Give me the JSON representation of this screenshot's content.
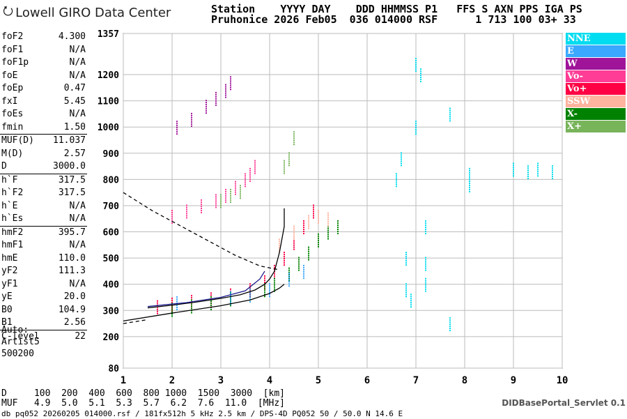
{
  "header": {
    "logo": "Lowell GIRO Data Center",
    "line1": "Station    YYYY DAY    DDD HHMMSS P1   FFS S AXN PPS IGA PS",
    "line2": "Pruhonice 2026 Feb05  036 014000 RSF      1 713 100 03+ 33"
  },
  "params": [
    {
      "name": "foF2",
      "value": "4.300"
    },
    {
      "name": "foF1",
      "value": "N/A"
    },
    {
      "name": "foF1p",
      "value": "N/A"
    },
    {
      "name": "foE",
      "value": "N/A"
    },
    {
      "name": "foEp",
      "value": "0.47"
    },
    {
      "name": "fxI",
      "value": "5.45"
    },
    {
      "name": "foEs",
      "value": "N/A"
    },
    {
      "name": "fmin",
      "value": "1.50"
    },
    {
      "name": "MUF(D)",
      "value": "11.037",
      "sep": true
    },
    {
      "name": "M(D)",
      "value": "2.57"
    },
    {
      "name": "D",
      "value": "3000.0"
    },
    {
      "name": "h`F",
      "value": "317.5",
      "sep": true
    },
    {
      "name": "h`F2",
      "value": "317.5"
    },
    {
      "name": "h`E",
      "value": "N/A"
    },
    {
      "name": "h`Es",
      "value": "N/A"
    },
    {
      "name": "hmF2",
      "value": "395.7",
      "sep": true
    },
    {
      "name": "hmF1",
      "value": "N/A"
    },
    {
      "name": "hmE",
      "value": "110.0"
    },
    {
      "name": "yF2",
      "value": "111.3"
    },
    {
      "name": "yF1",
      "value": "N/A"
    },
    {
      "name": "yE",
      "value": "20.0"
    },
    {
      "name": "B0",
      "value": "104.9"
    },
    {
      "name": "B1",
      "value": "2.56"
    },
    {
      "name": "C-level",
      "value": "22",
      "sep": true
    }
  ],
  "auto": {
    "line1": "Auto:",
    "line2": "Artist5",
    "line3": "500200"
  },
  "legend": [
    {
      "label": "NNE",
      "color": "#00dcf0"
    },
    {
      "label": "E",
      "color": "#3aa8ff"
    },
    {
      "label": "W",
      "color": "#a0149a"
    },
    {
      "label": "Vo-",
      "color": "#ff3c96"
    },
    {
      "label": "Vo+",
      "color": "#ff0044"
    },
    {
      "label": "SSW",
      "color": "#ffb4a0"
    },
    {
      "label": "X-",
      "color": "#008200"
    },
    {
      "label": "X+",
      "color": "#78b45a"
    }
  ],
  "footer": {
    "d_line": "D     100  200  400  600  800 1000  1500  3000  [km]",
    "muf_line": "MUF   4.9  5.0  5.1  5.3  5.7  6.2  7.6  11.0  [MHz]",
    "db_line": "db pq052 20260205 014000.rsf / 181fx512h 5 kHz 2.5 km / DPS-4D PQ052 50 / 50.0 N 14.6 E",
    "servlet": "DIDBasePortal_Servlet 0.1"
  },
  "chart_data": {
    "type": "scatter",
    "x_ticks": [
      "1",
      "2",
      "3",
      "4",
      "5",
      "6",
      "7",
      "8",
      "9",
      "10"
    ],
    "y_ticks": [
      "80",
      "200",
      "300",
      "400",
      "500",
      "600",
      "700",
      "800",
      "900",
      "1000",
      "1100",
      "1200",
      "1357"
    ],
    "xlim": [
      1,
      10
    ],
    "ylim": [
      80,
      1357
    ],
    "xlabel": "",
    "ylabel": "",
    "grid": true,
    "traces": [
      {
        "color": "#ff0044",
        "points": [
          [
            1.7,
            315
          ],
          [
            2.0,
            325
          ],
          [
            2.4,
            335
          ],
          [
            2.8,
            345
          ],
          [
            3.2,
            360
          ],
          [
            3.6,
            380
          ],
          [
            3.9,
            410
          ],
          [
            4.1,
            450
          ],
          [
            4.3,
            500
          ],
          [
            4.5,
            560
          ],
          [
            4.7,
            620
          ],
          [
            4.9,
            680
          ]
        ]
      },
      {
        "color": "#008200",
        "points": [
          [
            2.0,
            305
          ],
          [
            2.4,
            318
          ],
          [
            2.8,
            330
          ],
          [
            3.2,
            345
          ],
          [
            3.6,
            360
          ],
          [
            3.9,
            380
          ],
          [
            4.1,
            400
          ],
          [
            4.4,
            440
          ],
          [
            4.6,
            480
          ],
          [
            4.8,
            520
          ],
          [
            5.0,
            570
          ],
          [
            5.2,
            600
          ],
          [
            5.4,
            620
          ]
        ]
      },
      {
        "color": "#ff3c96",
        "points": [
          [
            2.0,
            660
          ],
          [
            2.3,
            680
          ],
          [
            2.6,
            700
          ],
          [
            2.9,
            720
          ],
          [
            3.1,
            740
          ],
          [
            3.3,
            770
          ],
          [
            3.5,
            800
          ],
          [
            3.6,
            820
          ],
          [
            3.7,
            850
          ]
        ]
      },
      {
        "color": "#a0149a",
        "points": [
          [
            2.1,
            1000
          ],
          [
            2.4,
            1030
          ],
          [
            2.7,
            1080
          ],
          [
            2.9,
            1110
          ],
          [
            3.1,
            1140
          ],
          [
            3.2,
            1170
          ]
        ]
      },
      {
        "color": "#78b45a",
        "points": [
          [
            3.0,
            720
          ],
          [
            3.2,
            740
          ],
          [
            3.4,
            755
          ],
          [
            4.3,
            850
          ],
          [
            4.4,
            880
          ],
          [
            4.5,
            960
          ]
        ]
      },
      {
        "color": "#00dcf0",
        "points": [
          [
            6.6,
            800
          ],
          [
            6.7,
            880
          ],
          [
            7.0,
            1000
          ],
          [
            7.0,
            1240
          ],
          [
            7.1,
            1200
          ],
          [
            7.2,
            620
          ],
          [
            7.2,
            400
          ],
          [
            7.2,
            480
          ],
          [
            6.8,
            500
          ],
          [
            6.8,
            380
          ],
          [
            6.9,
            340
          ],
          [
            8.1,
            820
          ],
          [
            8.1,
            780
          ],
          [
            7.7,
            250
          ],
          [
            7.7,
            1050
          ],
          [
            9.0,
            840
          ],
          [
            9.3,
            830
          ],
          [
            9.5,
            840
          ],
          [
            9.8,
            830
          ]
        ]
      },
      {
        "color": "#3aa8ff",
        "points": [
          [
            2.1,
            330
          ],
          [
            3.2,
            350
          ],
          [
            3.6,
            360
          ],
          [
            4.0,
            380
          ],
          [
            4.4,
            420
          ],
          [
            4.7,
            450
          ]
        ]
      },
      {
        "color": "#ffb4a0",
        "points": [
          [
            4.2,
            550
          ],
          [
            4.5,
            600
          ],
          [
            4.8,
            640
          ],
          [
            5.0,
            660
          ],
          [
            5.2,
            650
          ]
        ]
      }
    ],
    "curves": [
      {
        "style": "solid",
        "color": "#000",
        "points": [
          [
            1.5,
            310
          ],
          [
            2.0,
            320
          ],
          [
            2.5,
            332
          ],
          [
            3.0,
            346
          ],
          [
            3.4,
            360
          ],
          [
            3.7,
            378
          ],
          [
            3.9,
            400
          ],
          [
            4.0,
            420
          ],
          [
            4.1,
            450
          ],
          [
            4.2,
            520
          ],
          [
            4.3,
            620
          ],
          [
            4.3,
            690
          ]
        ]
      },
      {
        "style": "solid",
        "color": "#000",
        "points": [
          [
            1.0,
            260
          ],
          [
            2.0,
            290
          ],
          [
            3.0,
            318
          ],
          [
            3.6,
            340
          ],
          [
            4.0,
            365
          ],
          [
            4.2,
            385
          ],
          [
            4.3,
            400
          ]
        ]
      },
      {
        "style": "dashed",
        "color": "#000",
        "points": [
          [
            1.0,
            750
          ],
          [
            1.6,
            680
          ],
          [
            2.2,
            620
          ],
          [
            2.8,
            560
          ],
          [
            3.3,
            510
          ],
          [
            3.8,
            470
          ],
          [
            4.2,
            455
          ]
        ]
      },
      {
        "style": "dashed",
        "color": "#000",
        "points": [
          [
            1.0,
            250
          ],
          [
            1.5,
            265
          ]
        ]
      },
      {
        "style": "solid",
        "color": "#1a1a8c",
        "points": [
          [
            1.5,
            315
          ],
          [
            2.3,
            330
          ],
          [
            3.0,
            350
          ],
          [
            3.5,
            375
          ],
          [
            3.8,
            420
          ],
          [
            3.9,
            450
          ]
        ]
      }
    ]
  }
}
